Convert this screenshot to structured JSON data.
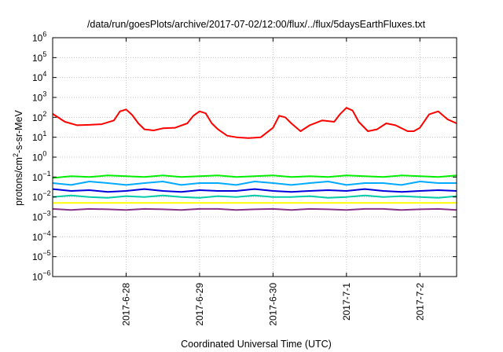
{
  "chart_data": {
    "type": "line",
    "title": "/data/run/goesPlots/archive/2017-07-02/12:00/flux/../flux/5daysEarthFluxes.txt",
    "xlabel": "Coordinated Universal Time (UTC)",
    "ylabel_parts": [
      "protons/cm",
      "2",
      "-s-sr-MeV"
    ],
    "yscale": "log",
    "ylim_exp": [
      -6,
      6
    ],
    "ytick_exponents": [
      -6,
      -5,
      -4,
      -3,
      -2,
      -1,
      0,
      1,
      2,
      3,
      4,
      5,
      6
    ],
    "xlim": [
      "2017-06-27T00:00",
      "2017-07-02T12:00"
    ],
    "xticks": [
      {
        "label": "2017-6-28",
        "t": "2017-06-28T00:00"
      },
      {
        "label": "2017-6-29",
        "t": "2017-06-29T00:00"
      },
      {
        "label": "2017-6-30",
        "t": "2017-06-30T00:00"
      },
      {
        "label": "2017-7-1",
        "t": "2017-07-01T00:00"
      },
      {
        "label": "2017-7-2",
        "t": "2017-07-02T00:00"
      }
    ],
    "grid": true,
    "series": [
      {
        "color": "#ff0000",
        "x": [
          "2017-06-27T00:00",
          "2017-06-27T04:00",
          "2017-06-27T08:00",
          "2017-06-27T12:00",
          "2017-06-27T16:00",
          "2017-06-27T20:00",
          "2017-06-27T22:00",
          "2017-06-28T00:00",
          "2017-06-28T02:00",
          "2017-06-28T04:00",
          "2017-06-28T06:00",
          "2017-06-28T09:00",
          "2017-06-28T12:00",
          "2017-06-28T16:00",
          "2017-06-28T20:00",
          "2017-06-28T22:00",
          "2017-06-29T00:00",
          "2017-06-29T02:00",
          "2017-06-29T04:00",
          "2017-06-29T06:00",
          "2017-06-29T09:00",
          "2017-06-29T12:00",
          "2017-06-29T16:00",
          "2017-06-29T20:00",
          "2017-06-30T00:00",
          "2017-06-30T02:00",
          "2017-06-30T04:00",
          "2017-06-30T06:00",
          "2017-06-30T09:00",
          "2017-06-30T12:00",
          "2017-06-30T16:00",
          "2017-06-30T20:00",
          "2017-06-30T22:00",
          "2017-07-01T00:00",
          "2017-07-01T02:00",
          "2017-07-01T04:00",
          "2017-07-01T07:00",
          "2017-07-01T10:00",
          "2017-07-01T13:00",
          "2017-07-01T16:00",
          "2017-07-01T20:00",
          "2017-07-01T22:00",
          "2017-07-02T00:00",
          "2017-07-02T03:00",
          "2017-07-02T06:00",
          "2017-07-02T09:00",
          "2017-07-02T12:00"
        ],
        "y": [
          150,
          60,
          40,
          42,
          45,
          70,
          200,
          250,
          130,
          50,
          25,
          22,
          28,
          30,
          50,
          120,
          200,
          160,
          50,
          25,
          12,
          10,
          9,
          10,
          30,
          120,
          100,
          50,
          20,
          40,
          70,
          60,
          150,
          300,
          220,
          60,
          20,
          25,
          50,
          40,
          20,
          20,
          30,
          140,
          200,
          80,
          50
        ]
      },
      {
        "color": "#00ee00",
        "x": [
          "2017-06-27T00:00",
          "2017-06-27T06:00",
          "2017-06-27T12:00",
          "2017-06-27T18:00",
          "2017-06-28T00:00",
          "2017-06-28T06:00",
          "2017-06-28T12:00",
          "2017-06-28T18:00",
          "2017-06-29T00:00",
          "2017-06-29T06:00",
          "2017-06-29T12:00",
          "2017-06-29T18:00",
          "2017-06-30T00:00",
          "2017-06-30T06:00",
          "2017-06-30T12:00",
          "2017-06-30T18:00",
          "2017-07-01T00:00",
          "2017-07-01T06:00",
          "2017-07-01T12:00",
          "2017-07-01T18:00",
          "2017-07-02T00:00",
          "2017-07-02T06:00",
          "2017-07-02T12:00"
        ],
        "y": [
          0.09,
          0.11,
          0.1,
          0.12,
          0.11,
          0.1,
          0.12,
          0.1,
          0.11,
          0.12,
          0.1,
          0.11,
          0.12,
          0.1,
          0.11,
          0.1,
          0.12,
          0.11,
          0.1,
          0.12,
          0.11,
          0.1,
          0.12
        ]
      },
      {
        "color": "#00aaff",
        "x": [
          "2017-06-27T00:00",
          "2017-06-27T06:00",
          "2017-06-27T12:00",
          "2017-06-27T18:00",
          "2017-06-28T00:00",
          "2017-06-28T06:00",
          "2017-06-28T12:00",
          "2017-06-28T18:00",
          "2017-06-29T00:00",
          "2017-06-29T06:00",
          "2017-06-29T12:00",
          "2017-06-29T18:00",
          "2017-06-30T00:00",
          "2017-06-30T06:00",
          "2017-06-30T12:00",
          "2017-06-30T18:00",
          "2017-07-01T00:00",
          "2017-07-01T06:00",
          "2017-07-01T12:00",
          "2017-07-01T18:00",
          "2017-07-02T00:00",
          "2017-07-02T06:00",
          "2017-07-02T12:00"
        ],
        "y": [
          0.05,
          0.04,
          0.06,
          0.05,
          0.04,
          0.05,
          0.06,
          0.04,
          0.05,
          0.05,
          0.04,
          0.06,
          0.05,
          0.04,
          0.05,
          0.06,
          0.04,
          0.05,
          0.05,
          0.04,
          0.06,
          0.05,
          0.05
        ]
      },
      {
        "color": "#0000dd",
        "x": [
          "2017-06-27T00:00",
          "2017-06-27T06:00",
          "2017-06-27T12:00",
          "2017-06-27T18:00",
          "2017-06-28T00:00",
          "2017-06-28T06:00",
          "2017-06-28T12:00",
          "2017-06-28T18:00",
          "2017-06-29T00:00",
          "2017-06-29T06:00",
          "2017-06-29T12:00",
          "2017-06-29T18:00",
          "2017-06-30T00:00",
          "2017-06-30T06:00",
          "2017-06-30T12:00",
          "2017-06-30T18:00",
          "2017-07-01T00:00",
          "2017-07-01T06:00",
          "2017-07-01T12:00",
          "2017-07-01T18:00",
          "2017-07-02T00:00",
          "2017-07-02T06:00",
          "2017-07-02T12:00"
        ],
        "y": [
          0.025,
          0.02,
          0.022,
          0.018,
          0.02,
          0.025,
          0.02,
          0.018,
          0.022,
          0.02,
          0.02,
          0.025,
          0.02,
          0.018,
          0.02,
          0.022,
          0.02,
          0.025,
          0.02,
          0.018,
          0.02,
          0.022,
          0.02
        ]
      },
      {
        "color": "#00ccaa",
        "x": [
          "2017-06-27T00:00",
          "2017-06-27T06:00",
          "2017-06-27T12:00",
          "2017-06-27T18:00",
          "2017-06-28T00:00",
          "2017-06-28T06:00",
          "2017-06-28T12:00",
          "2017-06-28T18:00",
          "2017-06-29T00:00",
          "2017-06-29T06:00",
          "2017-06-29T12:00",
          "2017-06-29T18:00",
          "2017-06-30T00:00",
          "2017-06-30T06:00",
          "2017-06-30T12:00",
          "2017-06-30T18:00",
          "2017-07-01T00:00",
          "2017-07-01T06:00",
          "2017-07-01T12:00",
          "2017-07-01T18:00",
          "2017-07-02T00:00",
          "2017-07-02T06:00",
          "2017-07-02T12:00"
        ],
        "y": [
          0.01,
          0.012,
          0.01,
          0.009,
          0.011,
          0.01,
          0.012,
          0.01,
          0.009,
          0.011,
          0.01,
          0.012,
          0.01,
          0.01,
          0.011,
          0.009,
          0.01,
          0.012,
          0.01,
          0.011,
          0.01,
          0.009,
          0.011
        ]
      },
      {
        "color": "#ffff00",
        "x": [
          "2017-06-27T00:00",
          "2017-06-27T06:00",
          "2017-06-27T12:00",
          "2017-06-27T18:00",
          "2017-06-28T00:00",
          "2017-06-28T06:00",
          "2017-06-28T12:00",
          "2017-06-28T18:00",
          "2017-06-29T00:00",
          "2017-06-29T06:00",
          "2017-06-29T12:00",
          "2017-06-29T18:00",
          "2017-06-30T00:00",
          "2017-06-30T06:00",
          "2017-06-30T12:00",
          "2017-06-30T18:00",
          "2017-07-01T00:00",
          "2017-07-01T06:00",
          "2017-07-01T12:00",
          "2017-07-01T18:00",
          "2017-07-02T00:00",
          "2017-07-02T06:00",
          "2017-07-02T12:00"
        ],
        "y": [
          0.005,
          0.005,
          0.005,
          0.005,
          0.005,
          0.005,
          0.005,
          0.005,
          0.005,
          0.005,
          0.005,
          0.005,
          0.005,
          0.005,
          0.005,
          0.005,
          0.005,
          0.005,
          0.005,
          0.005,
          0.005,
          0.005,
          0.005
        ]
      },
      {
        "color": "#883388",
        "x": [
          "2017-06-27T00:00",
          "2017-06-27T06:00",
          "2017-06-27T12:00",
          "2017-06-27T18:00",
          "2017-06-28T00:00",
          "2017-06-28T06:00",
          "2017-06-28T12:00",
          "2017-06-28T18:00",
          "2017-06-29T00:00",
          "2017-06-29T06:00",
          "2017-06-29T12:00",
          "2017-06-29T18:00",
          "2017-06-30T00:00",
          "2017-06-30T06:00",
          "2017-06-30T12:00",
          "2017-06-30T18:00",
          "2017-07-01T00:00",
          "2017-07-01T06:00",
          "2017-07-01T12:00",
          "2017-07-01T18:00",
          "2017-07-02T00:00",
          "2017-07-02T06:00",
          "2017-07-02T12:00"
        ],
        "y": [
          0.0025,
          0.0022,
          0.0025,
          0.0024,
          0.0022,
          0.0025,
          0.0024,
          0.0022,
          0.0025,
          0.0025,
          0.0022,
          0.0024,
          0.0025,
          0.0022,
          0.0025,
          0.0024,
          0.0022,
          0.0025,
          0.0025,
          0.0022,
          0.0024,
          0.0025,
          0.0022
        ]
      }
    ]
  }
}
